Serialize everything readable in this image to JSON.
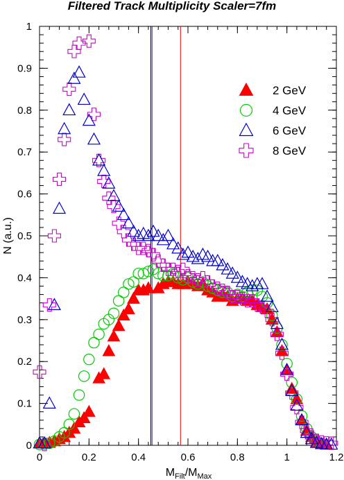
{
  "chart_data": {
    "type": "scatter",
    "title": "Filtered Track Multiplicity Scaler=7fm",
    "xlabel": {
      "main": "M",
      "sub1": "Filt",
      "sep": "/M",
      "sub2": "Max"
    },
    "ylabel": "N (a.u.)",
    "xlim": [
      0,
      1.2
    ],
    "ylim": [
      0,
      1
    ],
    "xticks": [
      "0",
      "0.2",
      "0.4",
      "0.6",
      "0.8",
      "1",
      "1.2"
    ],
    "yticks": [
      "0",
      "0.1",
      "0.2",
      "0.3",
      "0.4",
      "0.5",
      "0.6",
      "0.7",
      "0.8",
      "0.9",
      "1"
    ],
    "legend_position": "top-right",
    "vertical_lines": [
      {
        "x": 0.45,
        "color": "#000000"
      },
      {
        "x": 0.455,
        "color": "#2222ff"
      },
      {
        "x": 0.57,
        "color": "#e00000"
      }
    ],
    "series": [
      {
        "name": "2 GeV",
        "marker": "filled-triangle",
        "color": "#ff0000",
        "points": [
          [
            0.0,
            0.005
          ],
          [
            0.02,
            0.005
          ],
          [
            0.04,
            0.006
          ],
          [
            0.06,
            0.01
          ],
          [
            0.08,
            0.015
          ],
          [
            0.1,
            0.02
          ],
          [
            0.12,
            0.03
          ],
          [
            0.14,
            0.04
          ],
          [
            0.16,
            0.055
          ],
          [
            0.18,
            0.065
          ],
          [
            0.2,
            0.08
          ],
          [
            0.24,
            0.16
          ],
          [
            0.26,
            0.17
          ],
          [
            0.28,
            0.225
          ],
          [
            0.3,
            0.26
          ],
          [
            0.32,
            0.285
          ],
          [
            0.34,
            0.31
          ],
          [
            0.36,
            0.325
          ],
          [
            0.38,
            0.35
          ],
          [
            0.4,
            0.37
          ],
          [
            0.42,
            0.37
          ],
          [
            0.44,
            0.375
          ],
          [
            0.48,
            0.375
          ],
          [
            0.5,
            0.385
          ],
          [
            0.52,
            0.39
          ],
          [
            0.54,
            0.39
          ],
          [
            0.56,
            0.385
          ],
          [
            0.58,
            0.385
          ],
          [
            0.6,
            0.39
          ],
          [
            0.62,
            0.385
          ],
          [
            0.64,
            0.38
          ],
          [
            0.66,
            0.385
          ],
          [
            0.68,
            0.37
          ],
          [
            0.7,
            0.365
          ],
          [
            0.72,
            0.355
          ],
          [
            0.74,
            0.36
          ],
          [
            0.76,
            0.355
          ],
          [
            0.78,
            0.345
          ],
          [
            0.8,
            0.35
          ],
          [
            0.82,
            0.35
          ],
          [
            0.84,
            0.345
          ],
          [
            0.86,
            0.345
          ],
          [
            0.88,
            0.335
          ],
          [
            0.9,
            0.33
          ],
          [
            0.92,
            0.325
          ],
          [
            0.94,
            0.3
          ],
          [
            0.96,
            0.27
          ],
          [
            0.98,
            0.225
          ],
          [
            1.0,
            0.18
          ],
          [
            1.02,
            0.135
          ],
          [
            1.04,
            0.11
          ],
          [
            1.06,
            0.06
          ],
          [
            1.08,
            0.035
          ],
          [
            1.1,
            0.02
          ],
          [
            1.12,
            0.008
          ],
          [
            1.14,
            0.003
          ],
          [
            1.16,
            0.002
          ]
        ]
      },
      {
        "name": "4 GeV",
        "marker": "open-circle",
        "color": "#00cc00",
        "points": [
          [
            0.0,
            0.002
          ],
          [
            0.02,
            0.003
          ],
          [
            0.04,
            0.005
          ],
          [
            0.06,
            0.01
          ],
          [
            0.08,
            0.02
          ],
          [
            0.1,
            0.03
          ],
          [
            0.12,
            0.05
          ],
          [
            0.14,
            0.075
          ],
          [
            0.16,
            0.12
          ],
          [
            0.18,
            0.165
          ],
          [
            0.2,
            0.205
          ],
          [
            0.22,
            0.245
          ],
          [
            0.24,
            0.265
          ],
          [
            0.26,
            0.29
          ],
          [
            0.28,
            0.3
          ],
          [
            0.3,
            0.315
          ],
          [
            0.32,
            0.345
          ],
          [
            0.34,
            0.365
          ],
          [
            0.36,
            0.385
          ],
          [
            0.38,
            0.39
          ],
          [
            0.4,
            0.41
          ],
          [
            0.42,
            0.41
          ],
          [
            0.44,
            0.415
          ],
          [
            0.46,
            0.42
          ],
          [
            0.48,
            0.41
          ],
          [
            0.5,
            0.405
          ],
          [
            0.52,
            0.405
          ],
          [
            0.54,
            0.41
          ],
          [
            0.56,
            0.4
          ],
          [
            0.58,
            0.395
          ],
          [
            0.6,
            0.4
          ],
          [
            0.62,
            0.39
          ],
          [
            0.64,
            0.385
          ],
          [
            0.66,
            0.39
          ],
          [
            0.68,
            0.38
          ],
          [
            0.7,
            0.375
          ],
          [
            0.72,
            0.37
          ],
          [
            0.74,
            0.365
          ],
          [
            0.76,
            0.365
          ],
          [
            0.78,
            0.355
          ],
          [
            0.8,
            0.36
          ],
          [
            0.82,
            0.355
          ],
          [
            0.84,
            0.365
          ],
          [
            0.86,
            0.37
          ],
          [
            0.88,
            0.37
          ],
          [
            0.9,
            0.355
          ],
          [
            0.92,
            0.34
          ],
          [
            0.94,
            0.31
          ],
          [
            0.96,
            0.28
          ],
          [
            0.98,
            0.24
          ],
          [
            1.0,
            0.195
          ],
          [
            1.02,
            0.15
          ],
          [
            1.04,
            0.11
          ],
          [
            1.06,
            0.07
          ],
          [
            1.08,
            0.04
          ],
          [
            1.1,
            0.02
          ],
          [
            1.12,
            0.01
          ],
          [
            1.14,
            0.004
          ]
        ]
      },
      {
        "name": "6 GeV",
        "marker": "open-triangle",
        "color": "#0000cc",
        "points": [
          [
            0.0,
            0.005
          ],
          [
            0.02,
            0.005
          ],
          [
            0.04,
            0.1
          ],
          [
            0.06,
            0.335
          ],
          [
            0.08,
            0.565
          ],
          [
            0.1,
            0.755
          ],
          [
            0.12,
            0.8
          ],
          [
            0.14,
            0.875
          ],
          [
            0.16,
            0.89
          ],
          [
            0.18,
            0.825
          ],
          [
            0.2,
            0.775
          ],
          [
            0.22,
            0.73
          ],
          [
            0.24,
            0.68
          ],
          [
            0.26,
            0.655
          ],
          [
            0.28,
            0.625
          ],
          [
            0.3,
            0.595
          ],
          [
            0.32,
            0.57
          ],
          [
            0.34,
            0.55
          ],
          [
            0.36,
            0.53
          ],
          [
            0.38,
            0.51
          ],
          [
            0.4,
            0.5
          ],
          [
            0.42,
            0.505
          ],
          [
            0.44,
            0.5
          ],
          [
            0.46,
            0.51
          ],
          [
            0.48,
            0.5
          ],
          [
            0.5,
            0.49
          ],
          [
            0.52,
            0.5
          ],
          [
            0.54,
            0.48
          ],
          [
            0.56,
            0.47
          ],
          [
            0.58,
            0.455
          ],
          [
            0.6,
            0.46
          ],
          [
            0.62,
            0.45
          ],
          [
            0.64,
            0.445
          ],
          [
            0.66,
            0.455
          ],
          [
            0.68,
            0.45
          ],
          [
            0.7,
            0.44
          ],
          [
            0.72,
            0.44
          ],
          [
            0.74,
            0.43
          ],
          [
            0.76,
            0.42
          ],
          [
            0.78,
            0.41
          ],
          [
            0.8,
            0.4
          ],
          [
            0.82,
            0.39
          ],
          [
            0.84,
            0.385
          ],
          [
            0.86,
            0.38
          ],
          [
            0.88,
            0.385
          ],
          [
            0.9,
            0.385
          ],
          [
            0.92,
            0.355
          ],
          [
            0.94,
            0.33
          ],
          [
            0.96,
            0.29
          ],
          [
            0.98,
            0.24
          ],
          [
            1.0,
            0.18
          ],
          [
            1.02,
            0.13
          ],
          [
            1.04,
            0.095
          ],
          [
            1.06,
            0.06
          ],
          [
            1.08,
            0.03
          ],
          [
            1.1,
            0.015
          ],
          [
            1.12,
            0.006
          ],
          [
            1.14,
            0.003
          ],
          [
            1.16,
            0.002
          ],
          [
            1.18,
            0.002
          ]
        ]
      },
      {
        "name": "8 GeV",
        "marker": "open-cross",
        "color": "#cc00cc",
        "points": [
          [
            0.0,
            0.175
          ],
          [
            0.02,
            0.002
          ],
          [
            0.04,
            0.335
          ],
          [
            0.06,
            0.5
          ],
          [
            0.08,
            0.635
          ],
          [
            0.1,
            0.73
          ],
          [
            0.12,
            0.85
          ],
          [
            0.14,
            0.94
          ],
          [
            0.16,
            0.96
          ],
          [
            0.2,
            0.965
          ],
          [
            0.22,
            0.79
          ],
          [
            0.24,
            0.68
          ],
          [
            0.26,
            0.63
          ],
          [
            0.28,
            0.59
          ],
          [
            0.3,
            0.57
          ],
          [
            0.32,
            0.53
          ],
          [
            0.34,
            0.51
          ],
          [
            0.36,
            0.49
          ],
          [
            0.38,
            0.48
          ],
          [
            0.4,
            0.47
          ],
          [
            0.42,
            0.47
          ],
          [
            0.44,
            0.465
          ],
          [
            0.46,
            0.455
          ],
          [
            0.48,
            0.44
          ],
          [
            0.5,
            0.43
          ],
          [
            0.52,
            0.42
          ],
          [
            0.54,
            0.42
          ],
          [
            0.56,
            0.415
          ],
          [
            0.58,
            0.42
          ],
          [
            0.6,
            0.405
          ],
          [
            0.62,
            0.4
          ],
          [
            0.64,
            0.395
          ],
          [
            0.66,
            0.4
          ],
          [
            0.68,
            0.39
          ],
          [
            0.7,
            0.38
          ],
          [
            0.72,
            0.375
          ],
          [
            0.74,
            0.37
          ],
          [
            0.76,
            0.365
          ],
          [
            0.78,
            0.355
          ],
          [
            0.8,
            0.355
          ],
          [
            0.82,
            0.35
          ],
          [
            0.84,
            0.345
          ],
          [
            0.86,
            0.345
          ],
          [
            0.88,
            0.335
          ],
          [
            0.9,
            0.33
          ],
          [
            0.92,
            0.32
          ],
          [
            0.94,
            0.3
          ],
          [
            0.96,
            0.265
          ],
          [
            0.98,
            0.22
          ],
          [
            1.0,
            0.17
          ],
          [
            1.02,
            0.125
          ],
          [
            1.04,
            0.09
          ],
          [
            1.06,
            0.055
          ],
          [
            1.08,
            0.035
          ],
          [
            1.1,
            0.02
          ],
          [
            1.12,
            0.012
          ],
          [
            1.14,
            0.008
          ],
          [
            1.16,
            0.006
          ],
          [
            1.18,
            0.005
          ]
        ]
      }
    ]
  }
}
